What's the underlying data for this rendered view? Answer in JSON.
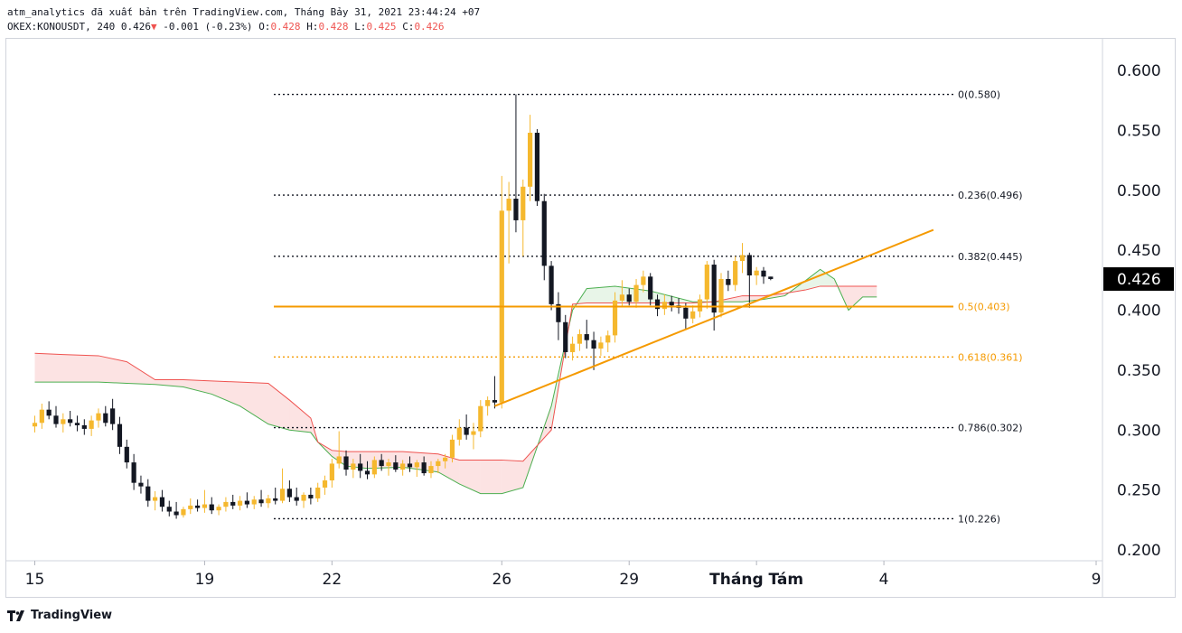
{
  "header": {
    "line1": "atm_analytics đã xuất bản trên TradingView.com, Tháng Bảy 31, 2021 23:44:24 +07",
    "symbol": "OKEX:KONOUSDT, 240",
    "last": "0.426",
    "change_arrow": "▼",
    "change": "-0.001 (-0.23%)",
    "o_label": "O:",
    "o_val": "0.428",
    "h_label": "H:",
    "h_val": "0.428",
    "l_label": "L:",
    "l_val": "0.425",
    "c_label": "C:",
    "c_val": "0.426"
  },
  "branding": {
    "logo_text": "TradingView"
  },
  "colors": {
    "up": "#f5b82e",
    "down": "#131722",
    "fib": "#131722",
    "fib_orange": "#f59a00",
    "trend": "#f59a00",
    "cloud_bull": "#4caf50",
    "cloud_bear": "#ef5350"
  },
  "chart_data": {
    "type": "candlestick",
    "symbol": "OKEX:KONOUSDT",
    "timeframe": "240",
    "y_range": [
      0.19,
      0.61
    ],
    "y_ticks": [
      "0.600",
      "0.550",
      "0.500",
      "0.450",
      "0.400",
      "0.350",
      "0.300",
      "0.250",
      "0.200"
    ],
    "x_ticks": [
      {
        "label": "15",
        "bar": 0
      },
      {
        "label": "19",
        "bar": 24
      },
      {
        "label": "22",
        "bar": 42
      },
      {
        "label": "26",
        "bar": 66
      },
      {
        "label": "29",
        "bar": 84
      },
      {
        "label": "Tháng Tám",
        "bar": 102
      },
      {
        "label": "4",
        "bar": 120
      },
      {
        "label": "9",
        "bar": 150
      }
    ],
    "last_price_label": "0.426",
    "candles": [
      [
        0.303,
        0.312,
        0.298,
        0.306
      ],
      [
        0.306,
        0.322,
        0.301,
        0.317
      ],
      [
        0.317,
        0.324,
        0.309,
        0.312
      ],
      [
        0.312,
        0.32,
        0.302,
        0.305
      ],
      [
        0.305,
        0.314,
        0.298,
        0.309
      ],
      [
        0.309,
        0.316,
        0.303,
        0.306
      ],
      [
        0.306,
        0.312,
        0.299,
        0.304
      ],
      [
        0.304,
        0.309,
        0.296,
        0.301
      ],
      [
        0.301,
        0.312,
        0.295,
        0.308
      ],
      [
        0.308,
        0.318,
        0.302,
        0.314
      ],
      [
        0.314,
        0.32,
        0.303,
        0.306
      ],
      [
        0.318,
        0.326,
        0.3,
        0.305
      ],
      [
        0.305,
        0.311,
        0.28,
        0.286
      ],
      [
        0.286,
        0.292,
        0.268,
        0.273
      ],
      [
        0.273,
        0.28,
        0.25,
        0.256
      ],
      [
        0.256,
        0.262,
        0.247,
        0.253
      ],
      [
        0.253,
        0.259,
        0.236,
        0.241
      ],
      [
        0.241,
        0.249,
        0.233,
        0.244
      ],
      [
        0.244,
        0.25,
        0.232,
        0.236
      ],
      [
        0.236,
        0.241,
        0.228,
        0.232
      ],
      [
        0.232,
        0.24,
        0.226,
        0.229
      ],
      [
        0.229,
        0.236,
        0.227,
        0.234
      ],
      [
        0.234,
        0.243,
        0.23,
        0.237
      ],
      [
        0.237,
        0.242,
        0.232,
        0.235
      ],
      [
        0.235,
        0.25,
        0.231,
        0.238
      ],
      [
        0.238,
        0.244,
        0.23,
        0.233
      ],
      [
        0.233,
        0.238,
        0.229,
        0.236
      ],
      [
        0.236,
        0.244,
        0.232,
        0.24
      ],
      [
        0.24,
        0.246,
        0.234,
        0.237
      ],
      [
        0.237,
        0.245,
        0.233,
        0.241
      ],
      [
        0.241,
        0.248,
        0.235,
        0.238
      ],
      [
        0.238,
        0.245,
        0.234,
        0.242
      ],
      [
        0.242,
        0.25,
        0.236,
        0.239
      ],
      [
        0.239,
        0.246,
        0.235,
        0.243
      ],
      [
        0.243,
        0.252,
        0.238,
        0.241
      ],
      [
        0.241,
        0.268,
        0.239,
        0.251
      ],
      [
        0.251,
        0.258,
        0.24,
        0.244
      ],
      [
        0.244,
        0.252,
        0.237,
        0.241
      ],
      [
        0.241,
        0.248,
        0.235,
        0.246
      ],
      [
        0.246,
        0.252,
        0.238,
        0.243
      ],
      [
        0.243,
        0.256,
        0.24,
        0.252
      ],
      [
        0.252,
        0.262,
        0.246,
        0.258
      ],
      [
        0.258,
        0.276,
        0.252,
        0.272
      ],
      [
        0.272,
        0.299,
        0.268,
        0.278
      ],
      [
        0.278,
        0.283,
        0.262,
        0.267
      ],
      [
        0.267,
        0.276,
        0.26,
        0.272
      ],
      [
        0.272,
        0.28,
        0.26,
        0.266
      ],
      [
        0.266,
        0.274,
        0.259,
        0.263
      ],
      [
        0.263,
        0.278,
        0.26,
        0.275
      ],
      [
        0.275,
        0.28,
        0.266,
        0.27
      ],
      [
        0.27,
        0.276,
        0.262,
        0.273
      ],
      [
        0.273,
        0.279,
        0.265,
        0.267
      ],
      [
        0.267,
        0.275,
        0.262,
        0.272
      ],
      [
        0.272,
        0.278,
        0.265,
        0.269
      ],
      [
        0.269,
        0.275,
        0.261,
        0.273
      ],
      [
        0.273,
        0.278,
        0.262,
        0.264
      ],
      [
        0.264,
        0.274,
        0.26,
        0.27
      ],
      [
        0.27,
        0.276,
        0.264,
        0.274
      ],
      [
        0.274,
        0.28,
        0.268,
        0.277
      ],
      [
        0.277,
        0.296,
        0.273,
        0.292
      ],
      [
        0.292,
        0.309,
        0.287,
        0.302
      ],
      [
        0.302,
        0.313,
        0.292,
        0.296
      ],
      [
        0.296,
        0.306,
        0.284,
        0.299
      ],
      [
        0.299,
        0.325,
        0.294,
        0.32
      ],
      [
        0.32,
        0.328,
        0.312,
        0.325
      ],
      [
        0.325,
        0.345,
        0.318,
        0.323
      ],
      [
        0.323,
        0.512,
        0.318,
        0.483
      ],
      [
        0.483,
        0.507,
        0.439,
        0.493
      ],
      [
        0.493,
        0.58,
        0.465,
        0.475
      ],
      [
        0.475,
        0.509,
        0.445,
        0.503
      ],
      [
        0.503,
        0.563,
        0.491,
        0.548
      ],
      [
        0.548,
        0.551,
        0.487,
        0.491
      ],
      [
        0.491,
        0.497,
        0.425,
        0.437
      ],
      [
        0.437,
        0.441,
        0.4,
        0.405
      ],
      [
        0.405,
        0.415,
        0.375,
        0.39
      ],
      [
        0.39,
        0.396,
        0.36,
        0.365
      ],
      [
        0.365,
        0.378,
        0.358,
        0.372
      ],
      [
        0.372,
        0.384,
        0.366,
        0.38
      ],
      [
        0.38,
        0.392,
        0.368,
        0.375
      ],
      [
        0.375,
        0.382,
        0.35,
        0.368
      ],
      [
        0.368,
        0.378,
        0.362,
        0.373
      ],
      [
        0.373,
        0.383,
        0.365,
        0.379
      ],
      [
        0.379,
        0.415,
        0.373,
        0.408
      ],
      [
        0.408,
        0.425,
        0.403,
        0.413
      ],
      [
        0.413,
        0.418,
        0.404,
        0.407
      ],
      [
        0.407,
        0.426,
        0.402,
        0.421
      ],
      [
        0.421,
        0.433,
        0.415,
        0.428
      ],
      [
        0.428,
        0.431,
        0.404,
        0.409
      ],
      [
        0.409,
        0.413,
        0.395,
        0.401
      ],
      [
        0.401,
        0.413,
        0.396,
        0.407
      ],
      [
        0.407,
        0.412,
        0.399,
        0.404
      ],
      [
        0.404,
        0.41,
        0.397,
        0.402
      ],
      [
        0.402,
        0.406,
        0.384,
        0.393
      ],
      [
        0.393,
        0.404,
        0.389,
        0.399
      ],
      [
        0.399,
        0.413,
        0.394,
        0.409
      ],
      [
        0.409,
        0.441,
        0.401,
        0.438
      ],
      [
        0.438,
        0.442,
        0.383,
        0.398
      ],
      [
        0.398,
        0.431,
        0.394,
        0.426
      ],
      [
        0.426,
        0.433,
        0.416,
        0.421
      ],
      [
        0.421,
        0.445,
        0.416,
        0.441
      ],
      [
        0.441,
        0.456,
        0.431,
        0.446
      ],
      [
        0.446,
        0.448,
        0.402,
        0.429
      ],
      [
        0.429,
        0.436,
        0.421,
        0.433
      ],
      [
        0.433,
        0.436,
        0.422,
        0.428
      ],
      [
        0.428,
        0.428,
        0.425,
        0.426
      ]
    ],
    "ichimoku_cloud": {
      "span_a": [
        0.34,
        0.34,
        0.34,
        0.339,
        0.338,
        0.336,
        0.33,
        0.32,
        0.305,
        0.3,
        0.298,
        0.29,
        0.278,
        0.27,
        0.268,
        0.269,
        0.265,
        0.255,
        0.247,
        0.247,
        0.252,
        0.32,
        0.4,
        0.418,
        0.42,
        0.416,
        0.407,
        0.407,
        0.407,
        0.409,
        0.412,
        0.425,
        0.434,
        0.426,
        0.4,
        0.411,
        0.411
      ],
      "span_b": [
        0.364,
        0.363,
        0.362,
        0.357,
        0.342,
        0.342,
        0.341,
        0.34,
        0.339,
        0.325,
        0.31,
        0.29,
        0.283,
        0.282,
        0.282,
        0.282,
        0.28,
        0.275,
        0.275,
        0.275,
        0.274,
        0.3,
        0.405,
        0.406,
        0.406,
        0.406,
        0.406,
        0.407,
        0.412,
        0.412,
        0.414,
        0.417,
        0.42,
        0.42,
        0.42,
        0.42,
        0.42
      ],
      "bars": [
        0,
        4,
        9,
        13,
        17,
        21,
        25,
        29,
        33,
        36,
        39,
        40,
        42,
        44,
        47,
        52,
        57,
        60,
        63,
        66,
        69,
        73,
        76,
        78,
        82,
        87,
        93,
        96,
        100,
        103,
        106,
        109,
        111,
        113,
        115,
        117,
        119
      ]
    },
    "fib_levels": [
      {
        "label": "0(0.580)",
        "value": 0.58
      },
      {
        "label": "0.236(0.496)",
        "value": 0.496
      },
      {
        "label": "0.382(0.445)",
        "value": 0.445
      },
      {
        "label": "0.5(0.403)",
        "value": 0.403
      },
      {
        "label": "0.618(0.361)",
        "value": 0.361
      },
      {
        "label": "0.786(0.302)",
        "value": 0.302
      },
      {
        "label": "1(0.226)",
        "value": 0.226
      }
    ],
    "trendline": {
      "from": {
        "bar": 65,
        "price": 0.32
      },
      "to": {
        "bar": 127,
        "price": 0.467
      }
    },
    "horizontal_line": {
      "price": 0.403
    }
  }
}
